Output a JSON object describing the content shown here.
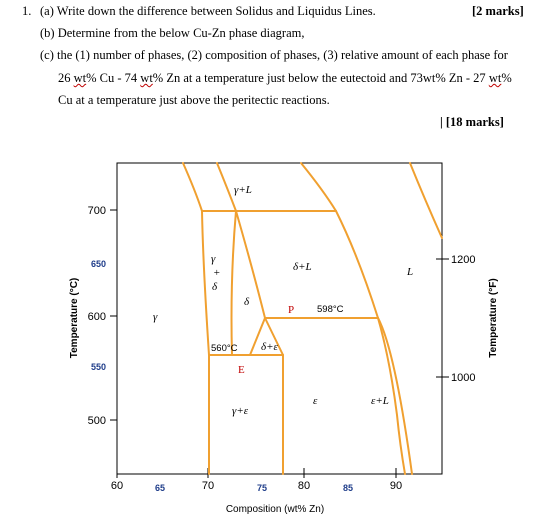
{
  "question": {
    "number": "1.",
    "part_a": "(a) Write down the difference between Solidus and Liquidus Lines.",
    "marks_a": "[2 marks]",
    "part_b": "(b) Determine from the below Cu-Zn phase diagram,",
    "part_c_line1": "(c) the (1) number of phases, (2) composition of phases, (3) relative amount of each phase for",
    "part_c_line2": {
      "t1": "26 ",
      "w1": "wt",
      "t2": "% Cu - 74 ",
      "w2": "wt",
      "t3": "% Zn at a temperature just below the eutectoid and 73wt% Zn - 27 ",
      "w3": "wt",
      "t4": "%"
    },
    "part_c_line3": "Cu at a temperature just above the peritectic reactions.",
    "marks_c": "| [18 marks]"
  },
  "diagram": {
    "y_left_label": "Temperature (°C)",
    "y_right_label": "Temperature (°F)",
    "x_label": "Composition (wt% Zn)",
    "x_ticks_major": [
      "60",
      "70",
      "80",
      "90"
    ],
    "x_ticks_minor": [
      "65",
      "75",
      "85"
    ],
    "y_ticks_black": [
      "700",
      "600",
      "500"
    ],
    "y_ticks_blue": [
      "650",
      "550"
    ],
    "y_right_ticks": [
      "1200",
      "1000"
    ],
    "line_color": "#f0a030",
    "blue_color": "#1f3d8a",
    "phase_labels": {
      "gamma_L": "γ+L",
      "gamma": "γ",
      "gamma_gamma": "γ",
      "plus": "+",
      "delta": "δ",
      "delta_region": "δ",
      "delta_L": "δ+L",
      "L": "L",
      "gamma_left": "γ",
      "P": "P",
      "temp_598": "598°C",
      "temp_560": "560°C",
      "delta_eps": "δ+ε",
      "E": "E",
      "gamma_eps": "γ+ε",
      "eps": "ε",
      "eps_L": "ε+L"
    }
  }
}
